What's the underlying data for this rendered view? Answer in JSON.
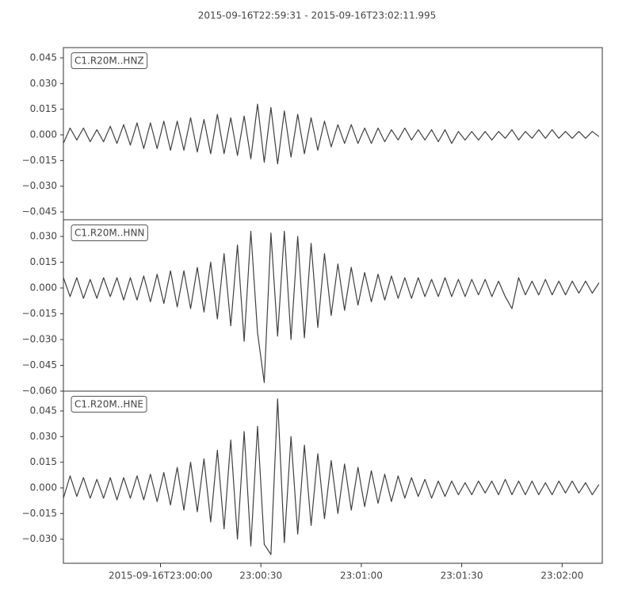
{
  "chart_data": {
    "type": "line",
    "title": "2015-09-16T22:59:31  -  2015-09-16T23:02:11.995",
    "color": "#404040",
    "xlim": [
      "2015-09-16T22:59:31",
      "2015-09-16T23:02:11.995"
    ],
    "xticks": [
      "2015-09-16T23:00:00",
      {
        "value": "2015-09-16T23:00:30",
        "label": "23:00:30"
      },
      {
        "value": "2015-09-16T23:01:00",
        "label": "23:01:00"
      },
      {
        "value": "2015-09-16T23:01:30",
        "label": "23:01:30"
      },
      {
        "value": "2015-09-16T23:02:00",
        "label": "23:02:00"
      }
    ],
    "x": [
      "2015-09-16T22:59:31",
      "2015-09-16T22:59:33",
      "2015-09-16T22:59:35",
      "2015-09-16T22:59:37",
      "2015-09-16T22:59:39",
      "2015-09-16T22:59:41",
      "2015-09-16T22:59:43",
      "2015-09-16T22:59:45",
      "2015-09-16T22:59:47",
      "2015-09-16T22:59:49",
      "2015-09-16T22:59:51",
      "2015-09-16T22:59:53",
      "2015-09-16T22:59:55",
      "2015-09-16T22:59:57",
      "2015-09-16T22:59:59",
      "2015-09-16T23:00:01",
      "2015-09-16T23:00:03",
      "2015-09-16T23:00:05",
      "2015-09-16T23:00:07",
      "2015-09-16T23:00:09",
      "2015-09-16T23:00:11",
      "2015-09-16T23:00:13",
      "2015-09-16T23:00:15",
      "2015-09-16T23:00:17",
      "2015-09-16T23:00:19",
      "2015-09-16T23:00:21",
      "2015-09-16T23:00:23",
      "2015-09-16T23:00:25",
      "2015-09-16T23:00:27",
      "2015-09-16T23:00:29",
      "2015-09-16T23:00:31",
      "2015-09-16T23:00:33",
      "2015-09-16T23:00:35",
      "2015-09-16T23:00:37",
      "2015-09-16T23:00:39",
      "2015-09-16T23:00:41",
      "2015-09-16T23:00:43",
      "2015-09-16T23:00:45",
      "2015-09-16T23:00:47",
      "2015-09-16T23:00:49",
      "2015-09-16T23:00:51",
      "2015-09-16T23:00:53",
      "2015-09-16T23:00:55",
      "2015-09-16T23:00:57",
      "2015-09-16T23:00:59",
      "2015-09-16T23:01:01",
      "2015-09-16T23:01:03",
      "2015-09-16T23:01:05",
      "2015-09-16T23:01:07",
      "2015-09-16T23:01:09",
      "2015-09-16T23:01:11",
      "2015-09-16T23:01:13",
      "2015-09-16T23:01:15",
      "2015-09-16T23:01:17",
      "2015-09-16T23:01:19",
      "2015-09-16T23:01:21",
      "2015-09-16T23:01:23",
      "2015-09-16T23:01:25",
      "2015-09-16T23:01:27",
      "2015-09-16T23:01:29",
      "2015-09-16T23:01:31",
      "2015-09-16T23:01:33",
      "2015-09-16T23:01:35",
      "2015-09-16T23:01:37",
      "2015-09-16T23:01:39",
      "2015-09-16T23:01:41",
      "2015-09-16T23:01:43",
      "2015-09-16T23:01:45",
      "2015-09-16T23:01:47",
      "2015-09-16T23:01:49",
      "2015-09-16T23:01:51",
      "2015-09-16T23:01:53",
      "2015-09-16T23:01:55",
      "2015-09-16T23:01:57",
      "2015-09-16T23:01:59",
      "2015-09-16T23:02:01",
      "2015-09-16T23:02:03",
      "2015-09-16T23:02:05",
      "2015-09-16T23:02:07",
      "2015-09-16T23:02:09",
      "2015-09-16T23:02:11"
    ],
    "panels": [
      {
        "name": "C1.R20M..HNZ",
        "ylim": [
          -0.0496,
          0.051
        ],
        "yticks": [
          0.045,
          {
            "value": 0.03,
            "label": "0.030"
          },
          0.015,
          {
            "value": 0,
            "label": "0.000"
          },
          {
            "value": -0.015,
            "label": "−0.015"
          },
          {
            "value": -0.03,
            "label": "−0.030"
          },
          {
            "value": -0.045,
            "label": "−0.045"
          }
        ],
        "values": [
          -0.005,
          0.004,
          -0.003,
          0.004,
          -0.004,
          0.003,
          -0.004,
          0.005,
          -0.005,
          0.006,
          -0.006,
          0.007,
          -0.008,
          0.007,
          -0.008,
          0.008,
          -0.009,
          0.008,
          -0.009,
          0.01,
          -0.01,
          0.009,
          -0.011,
          0.012,
          -0.011,
          0.01,
          -0.012,
          0.011,
          -0.014,
          0.018,
          -0.016,
          0.016,
          -0.017,
          0.014,
          -0.013,
          0.012,
          -0.011,
          0.01,
          -0.009,
          0.008,
          -0.007,
          0.006,
          -0.005,
          0.006,
          -0.005,
          0.004,
          -0.005,
          0.004,
          -0.004,
          0.003,
          -0.003,
          0.004,
          -0.003,
          0.003,
          -0.003,
          0.003,
          -0.004,
          0.003,
          -0.005,
          0.002,
          -0.003,
          0.002,
          -0.003,
          0.002,
          -0.003,
          0.002,
          -0.002,
          0.003,
          -0.003,
          0.002,
          -0.002,
          0.003,
          -0.002,
          0.003,
          -0.002,
          0.002,
          -0.002,
          0.002,
          -0.002,
          0.002,
          -0.001
        ]
      },
      {
        "name": "C1.R20M..HNN",
        "ylim": [
          -0.06,
          0.0397
        ],
        "yticks": [
          {
            "value": 0.03,
            "label": "0.030"
          },
          0.015,
          {
            "value": 0,
            "label": "0.000"
          },
          {
            "value": -0.015,
            "label": "−0.015"
          },
          {
            "value": -0.03,
            "label": "−0.030"
          },
          {
            "value": -0.045,
            "label": "−0.045"
          },
          {
            "value": -0.06,
            "label": "−0.060"
          }
        ],
        "values": [
          0.006,
          -0.005,
          0.006,
          -0.006,
          0.005,
          -0.006,
          0.006,
          -0.005,
          0.006,
          -0.007,
          0.006,
          -0.007,
          0.007,
          -0.008,
          0.008,
          -0.009,
          0.01,
          -0.011,
          0.01,
          -0.012,
          0.012,
          -0.014,
          0.015,
          -0.018,
          0.02,
          -0.022,
          0.025,
          -0.031,
          0.033,
          -0.026,
          -0.055,
          0.032,
          -0.028,
          0.033,
          -0.03,
          0.03,
          -0.029,
          0.026,
          -0.023,
          0.02,
          -0.016,
          0.014,
          -0.013,
          0.012,
          -0.01,
          0.009,
          -0.008,
          0.008,
          -0.007,
          0.007,
          -0.006,
          0.006,
          -0.006,
          0.006,
          -0.005,
          0.005,
          -0.005,
          0.006,
          -0.005,
          0.005,
          -0.005,
          0.005,
          -0.004,
          0.005,
          -0.005,
          0.004,
          -0.005,
          -0.012,
          0.006,
          -0.004,
          0.004,
          -0.004,
          0.005,
          -0.004,
          0.004,
          -0.004,
          0.004,
          -0.003,
          0.004,
          -0.003,
          0.003
        ]
      },
      {
        "name": "C1.R20M..HNE",
        "ylim": [
          -0.0441,
          0.0566
        ],
        "yticks": [
          0.045,
          {
            "value": 0.03,
            "label": "0.030"
          },
          0.015,
          {
            "value": 0,
            "label": "0.000"
          },
          {
            "value": -0.015,
            "label": "−0.015"
          },
          {
            "value": -0.03,
            "label": "−0.030"
          }
        ],
        "values": [
          -0.006,
          0.007,
          -0.005,
          0.006,
          -0.006,
          0.005,
          -0.006,
          0.006,
          -0.007,
          0.006,
          -0.006,
          0.007,
          -0.007,
          0.008,
          -0.008,
          0.009,
          -0.01,
          0.012,
          -0.013,
          0.015,
          -0.014,
          0.017,
          -0.02,
          0.022,
          -0.024,
          0.028,
          -0.03,
          0.033,
          -0.034,
          0.036,
          -0.033,
          -0.039,
          0.052,
          -0.032,
          0.03,
          -0.027,
          0.025,
          -0.022,
          0.02,
          -0.018,
          0.016,
          -0.015,
          0.014,
          -0.013,
          0.012,
          -0.011,
          0.01,
          -0.009,
          0.008,
          -0.008,
          0.007,
          -0.006,
          0.006,
          -0.005,
          0.005,
          -0.006,
          0.004,
          -0.005,
          0.004,
          -0.004,
          0.003,
          -0.004,
          0.004,
          -0.003,
          0.004,
          -0.004,
          0.005,
          -0.004,
          0.004,
          -0.004,
          0.004,
          -0.004,
          0.003,
          -0.004,
          0.004,
          -0.003,
          0.004,
          -0.003,
          0.003,
          -0.004,
          0.002
        ]
      }
    ]
  }
}
